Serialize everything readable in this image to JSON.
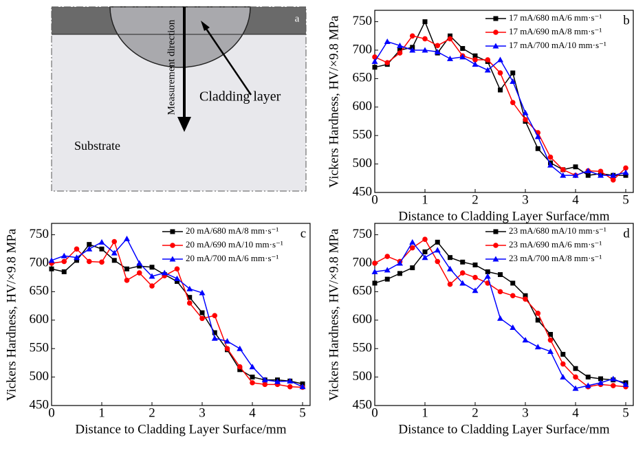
{
  "diagram": {
    "label": "a",
    "direction_text": "Measurement direction",
    "cladding_text": "Cladding layer",
    "substrate_text": "Substrate"
  },
  "chart_data": [
    {
      "type": "line",
      "annotation": "b",
      "x_label": "Distance to Cladding Layer Surface/mm",
      "y_label": "Vickers Hardness, HV/×9.8 MPa",
      "x": [
        0,
        0.25,
        0.5,
        0.75,
        1,
        1.25,
        1.5,
        1.75,
        2,
        2.25,
        2.5,
        2.75,
        3,
        3.25,
        3.5,
        3.75,
        4,
        4.25,
        4.5,
        4.75,
        5
      ],
      "xlim": [
        0,
        5.15
      ],
      "xticks": [
        0,
        1,
        2,
        3,
        4,
        5
      ],
      "ylim": [
        450,
        770
      ],
      "yticks": [
        450,
        500,
        550,
        600,
        650,
        700,
        750
      ],
      "legend": "upper right",
      "series": [
        {
          "name": "17 mA/680 mA/6 mm·s⁻¹",
          "color": "#000000",
          "marker": "square",
          "values": [
            670,
            675,
            700,
            705,
            750,
            695,
            725,
            703,
            690,
            680,
            630,
            660,
            575,
            527,
            502,
            490,
            495,
            480,
            483,
            480,
            480
          ]
        },
        {
          "name": "17 mA/690 mA/8 mm·s⁻¹",
          "color": "#ff0000",
          "marker": "circle",
          "values": [
            688,
            678,
            695,
            725,
            720,
            708,
            720,
            690,
            683,
            683,
            660,
            608,
            578,
            555,
            512,
            490,
            480,
            488,
            487,
            472,
            493
          ]
        },
        {
          "name": "17 mA/700 mA/10 mm·s⁻¹",
          "color": "#0000ff",
          "marker": "triangle",
          "values": [
            680,
            715,
            708,
            700,
            700,
            697,
            685,
            688,
            675,
            665,
            683,
            645,
            590,
            548,
            498,
            480,
            480,
            488,
            480,
            480,
            485
          ]
        }
      ]
    },
    {
      "type": "line",
      "annotation": "c",
      "x_label": "Distance to Cladding Layer Surface/mm",
      "y_label": "Vickers Hardness, HV/×9.8 MPa",
      "x": [
        0,
        0.25,
        0.5,
        0.75,
        1,
        1.25,
        1.5,
        1.75,
        2,
        2.25,
        2.5,
        2.75,
        3,
        3.25,
        3.5,
        3.75,
        4,
        4.25,
        4.5,
        4.75,
        5
      ],
      "xlim": [
        0,
        5.15
      ],
      "xticks": [
        0,
        1,
        2,
        3,
        4,
        5
      ],
      "ylim": [
        450,
        770
      ],
      "yticks": [
        450,
        500,
        550,
        600,
        650,
        700,
        750
      ],
      "legend": "upper right",
      "series": [
        {
          "name": "20 mA/680 mA/8 mm·s⁻¹",
          "color": "#000000",
          "marker": "square",
          "values": [
            690,
            685,
            705,
            733,
            725,
            705,
            690,
            695,
            693,
            680,
            668,
            640,
            613,
            578,
            548,
            513,
            500,
            495,
            495,
            493,
            488
          ]
        },
        {
          "name": "20 mA/690 mA/10 mm·s⁻¹",
          "color": "#ff0000",
          "marker": "circle",
          "values": [
            700,
            703,
            725,
            703,
            702,
            738,
            670,
            683,
            660,
            678,
            690,
            630,
            603,
            608,
            550,
            518,
            490,
            487,
            487,
            483,
            482
          ]
        },
        {
          "name": "20 mA/700 mA/6 mm·s⁻¹",
          "color": "#0000ff",
          "marker": "triangle",
          "values": [
            705,
            713,
            710,
            725,
            737,
            718,
            743,
            700,
            677,
            683,
            673,
            655,
            648,
            568,
            563,
            550,
            518,
            495,
            492,
            493,
            483
          ]
        }
      ]
    },
    {
      "type": "line",
      "annotation": "d",
      "x_label": "Distance to Cladding Layer Surface/mm",
      "y_label": "Vickers Hardness, HV/×9.8 MPa",
      "x": [
        0,
        0.25,
        0.5,
        0.75,
        1,
        1.25,
        1.5,
        1.75,
        2,
        2.25,
        2.5,
        2.75,
        3,
        3.25,
        3.5,
        3.75,
        4,
        4.25,
        4.5,
        4.75,
        5
      ],
      "xlim": [
        0,
        5.15
      ],
      "xticks": [
        0,
        1,
        2,
        3,
        4,
        5
      ],
      "ylim": [
        450,
        770
      ],
      "yticks": [
        450,
        500,
        550,
        600,
        650,
        700,
        750
      ],
      "legend": "upper right",
      "series": [
        {
          "name": "23 mA/680 mA/10 mm·s⁻¹",
          "color": "#000000",
          "marker": "square",
          "values": [
            665,
            672,
            682,
            692,
            720,
            737,
            710,
            702,
            697,
            685,
            680,
            665,
            643,
            600,
            575,
            540,
            515,
            500,
            497,
            495,
            490
          ]
        },
        {
          "name": "23 mA/690 mA/6 mm·s⁻¹",
          "color": "#ff0000",
          "marker": "circle",
          "values": [
            700,
            712,
            703,
            727,
            742,
            703,
            663,
            683,
            675,
            665,
            650,
            643,
            637,
            612,
            565,
            523,
            500,
            483,
            487,
            485,
            483
          ]
        },
        {
          "name": "23 mA/700 mA/8 mm·s⁻¹",
          "color": "#0000ff",
          "marker": "triangle",
          "values": [
            685,
            688,
            700,
            737,
            710,
            723,
            690,
            665,
            652,
            677,
            603,
            587,
            565,
            553,
            545,
            500,
            480,
            485,
            490,
            497,
            487
          ]
        }
      ]
    }
  ]
}
